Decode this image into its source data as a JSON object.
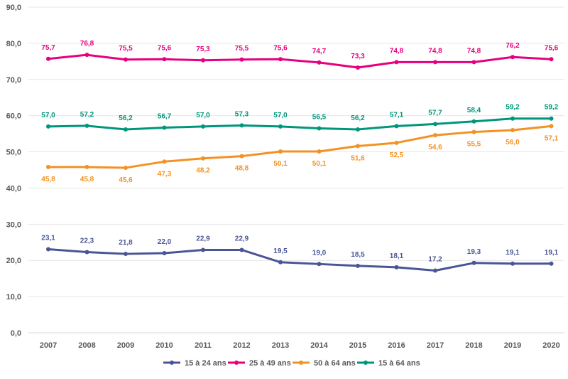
{
  "chart_data": {
    "type": "line",
    "categories": [
      "2007",
      "2008",
      "2009",
      "2010",
      "2011",
      "2012",
      "2013",
      "2014",
      "2015",
      "2016",
      "2017",
      "2018",
      "2019",
      "2020"
    ],
    "ylim": [
      0,
      90
    ],
    "yticks": [
      "0,0",
      "10,0",
      "20,0",
      "30,0",
      "40,0",
      "50,0",
      "60,0",
      "70,0",
      "80,0",
      "90,0"
    ],
    "grid": true,
    "legend_position": "bottom",
    "series": [
      {
        "name": "15 à 24 ans",
        "color": "#4a5596",
        "values": [
          23.1,
          22.3,
          21.8,
          22.0,
          22.9,
          22.9,
          19.5,
          19.0,
          18.5,
          18.1,
          17.2,
          19.3,
          19.1,
          19.1
        ],
        "labels": [
          "23,1",
          "22,3",
          "21,8",
          "22,0",
          "22,9",
          "22,9",
          "19,5",
          "19,0",
          "18,5",
          "18,1",
          "17,2",
          "19,3",
          "19,1",
          "19,1"
        ],
        "label_pos": "above"
      },
      {
        "name": "25 à 49 ans",
        "color": "#e6007e",
        "values": [
          75.7,
          76.8,
          75.5,
          75.6,
          75.3,
          75.5,
          75.6,
          74.7,
          73.3,
          74.8,
          74.8,
          74.8,
          76.2,
          75.6
        ],
        "labels": [
          "75,7",
          "76,8",
          "75,5",
          "75,6",
          "75,3",
          "75,5",
          "75,6",
          "74,7",
          "73,3",
          "74,8",
          "74,8",
          "74,8",
          "76,2",
          "75,6"
        ],
        "label_pos": "above"
      },
      {
        "name": "50 à 64 ans",
        "color": "#f39224",
        "values": [
          45.8,
          45.8,
          45.6,
          47.3,
          48.2,
          48.8,
          50.1,
          50.1,
          51.6,
          52.5,
          54.6,
          55.5,
          56.0,
          57.1
        ],
        "labels": [
          "45,8",
          "45,8",
          "45,6",
          "47,3",
          "48,2",
          "48,8",
          "50,1",
          "50,1",
          "51,6",
          "52,5",
          "54,6",
          "55,5",
          "56,0",
          "57,1"
        ],
        "label_pos": "below"
      },
      {
        "name": "15 à 64 ans",
        "color": "#00967a",
        "values": [
          57.0,
          57.2,
          56.2,
          56.7,
          57.0,
          57.3,
          57.0,
          56.5,
          56.2,
          57.1,
          57.7,
          58.4,
          59.2,
          59.2
        ],
        "labels": [
          "57,0",
          "57,2",
          "56,2",
          "56,7",
          "57,0",
          "57,3",
          "57,0",
          "56,5",
          "56,2",
          "57,1",
          "57,7",
          "58,4",
          "59,2",
          "59,2"
        ],
        "label_pos": "above"
      }
    ]
  }
}
